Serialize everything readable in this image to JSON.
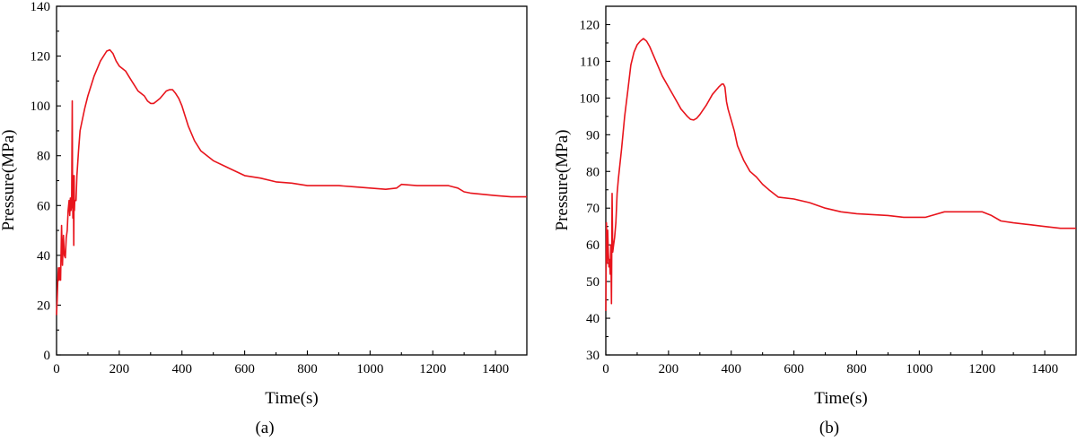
{
  "line_color": "#e8141c",
  "chart_data": [
    {
      "type": "line",
      "caption": "(a)",
      "xlabel": "Time(s)",
      "ylabel": "Pressure(MPa)",
      "xlim": [
        0,
        1500
      ],
      "ylim": [
        0,
        140
      ],
      "xticks": [
        0,
        200,
        400,
        600,
        800,
        1000,
        1200,
        1400
      ],
      "yticks": [
        0,
        20,
        40,
        60,
        80,
        100,
        120,
        140
      ],
      "grid": false,
      "series": [
        {
          "x": [
            0,
            2,
            4,
            6,
            8,
            10,
            13,
            16,
            19,
            22,
            25,
            28,
            31,
            34,
            37,
            40,
            42,
            44,
            46,
            48,
            50,
            51,
            52,
            53,
            54,
            55,
            56,
            57,
            58,
            60,
            62,
            65,
            70,
            75,
            80,
            90,
            100,
            120,
            140,
            160,
            170,
            180,
            190,
            200,
            210,
            220,
            230,
            240,
            250,
            260,
            270,
            280,
            290,
            300,
            310,
            320,
            330,
            340,
            350,
            360,
            370,
            380,
            390,
            400,
            410,
            420,
            440,
            460,
            500,
            550,
            600,
            650,
            700,
            750,
            800,
            900,
            950,
            1000,
            1050,
            1085,
            1100,
            1150,
            1200,
            1250,
            1280,
            1300,
            1320,
            1360,
            1400,
            1450,
            1500
          ],
          "y": [
            16,
            22,
            30,
            35,
            30,
            35,
            30,
            52,
            36,
            48,
            40,
            39,
            47,
            50,
            58,
            62,
            56,
            63,
            58,
            60,
            102,
            70,
            55,
            72,
            60,
            44,
            72,
            58,
            62,
            62,
            62,
            72,
            82,
            90,
            93,
            99,
            104,
            112,
            118,
            122,
            122.5,
            121,
            118,
            116,
            115,
            114,
            112,
            110,
            108,
            106,
            105,
            104,
            102,
            101,
            101,
            102,
            103,
            104.5,
            106,
            106.5,
            106.5,
            105,
            103,
            100,
            96,
            92,
            86,
            82,
            78,
            75,
            72,
            71,
            69.5,
            69,
            68,
            68,
            67.5,
            67,
            66.5,
            67,
            68.5,
            68,
            68,
            68,
            67,
            65.5,
            65,
            64.5,
            64,
            63.5,
            63.5
          ]
        }
      ]
    },
    {
      "type": "line",
      "caption": "(b)",
      "xlabel": "Time(s)",
      "ylabel": "Pressure(MPa)",
      "xlim": [
        0,
        1500
      ],
      "ylim": [
        30,
        125
      ],
      "xticks": [
        0,
        200,
        400,
        600,
        800,
        1000,
        1200,
        1400
      ],
      "yticks": [
        30,
        40,
        50,
        60,
        70,
        80,
        90,
        100,
        110,
        120
      ],
      "grid": false,
      "series": [
        {
          "x": [
            0,
            2,
            4,
            6,
            8,
            10,
            12,
            14,
            16,
            18,
            20,
            22,
            25,
            28,
            32,
            36,
            40,
            50,
            60,
            70,
            80,
            90,
            100,
            110,
            120,
            130,
            140,
            160,
            180,
            200,
            220,
            240,
            260,
            270,
            280,
            290,
            300,
            320,
            340,
            360,
            370,
            375,
            380,
            385,
            390,
            400,
            410,
            420,
            440,
            460,
            480,
            500,
            520,
            550,
            600,
            650,
            700,
            750,
            800,
            900,
            950,
            1000,
            1020,
            1040,
            1080,
            1100,
            1150,
            1200,
            1230,
            1260,
            1300,
            1350,
            1400,
            1450,
            1500
          ],
          "y": [
            42,
            66,
            55,
            64,
            58,
            54,
            56,
            52,
            60,
            44,
            74,
            58,
            60,
            62,
            66,
            74,
            78,
            86,
            95,
            102,
            109,
            112.5,
            114.5,
            115.5,
            116.2,
            115.5,
            114,
            110,
            106,
            103,
            100,
            97,
            95,
            94.2,
            94,
            94.5,
            95.5,
            98,
            101,
            103,
            103.8,
            103.8,
            103,
            99,
            97,
            94,
            91,
            87,
            83,
            80,
            78.5,
            76.5,
            75,
            73,
            72.5,
            71.5,
            70,
            69,
            68.5,
            68,
            67.5,
            67.5,
            67.5,
            68,
            69,
            69,
            69,
            69,
            68,
            66.5,
            66,
            65.5,
            65,
            64.5,
            64.5
          ]
        }
      ]
    }
  ]
}
